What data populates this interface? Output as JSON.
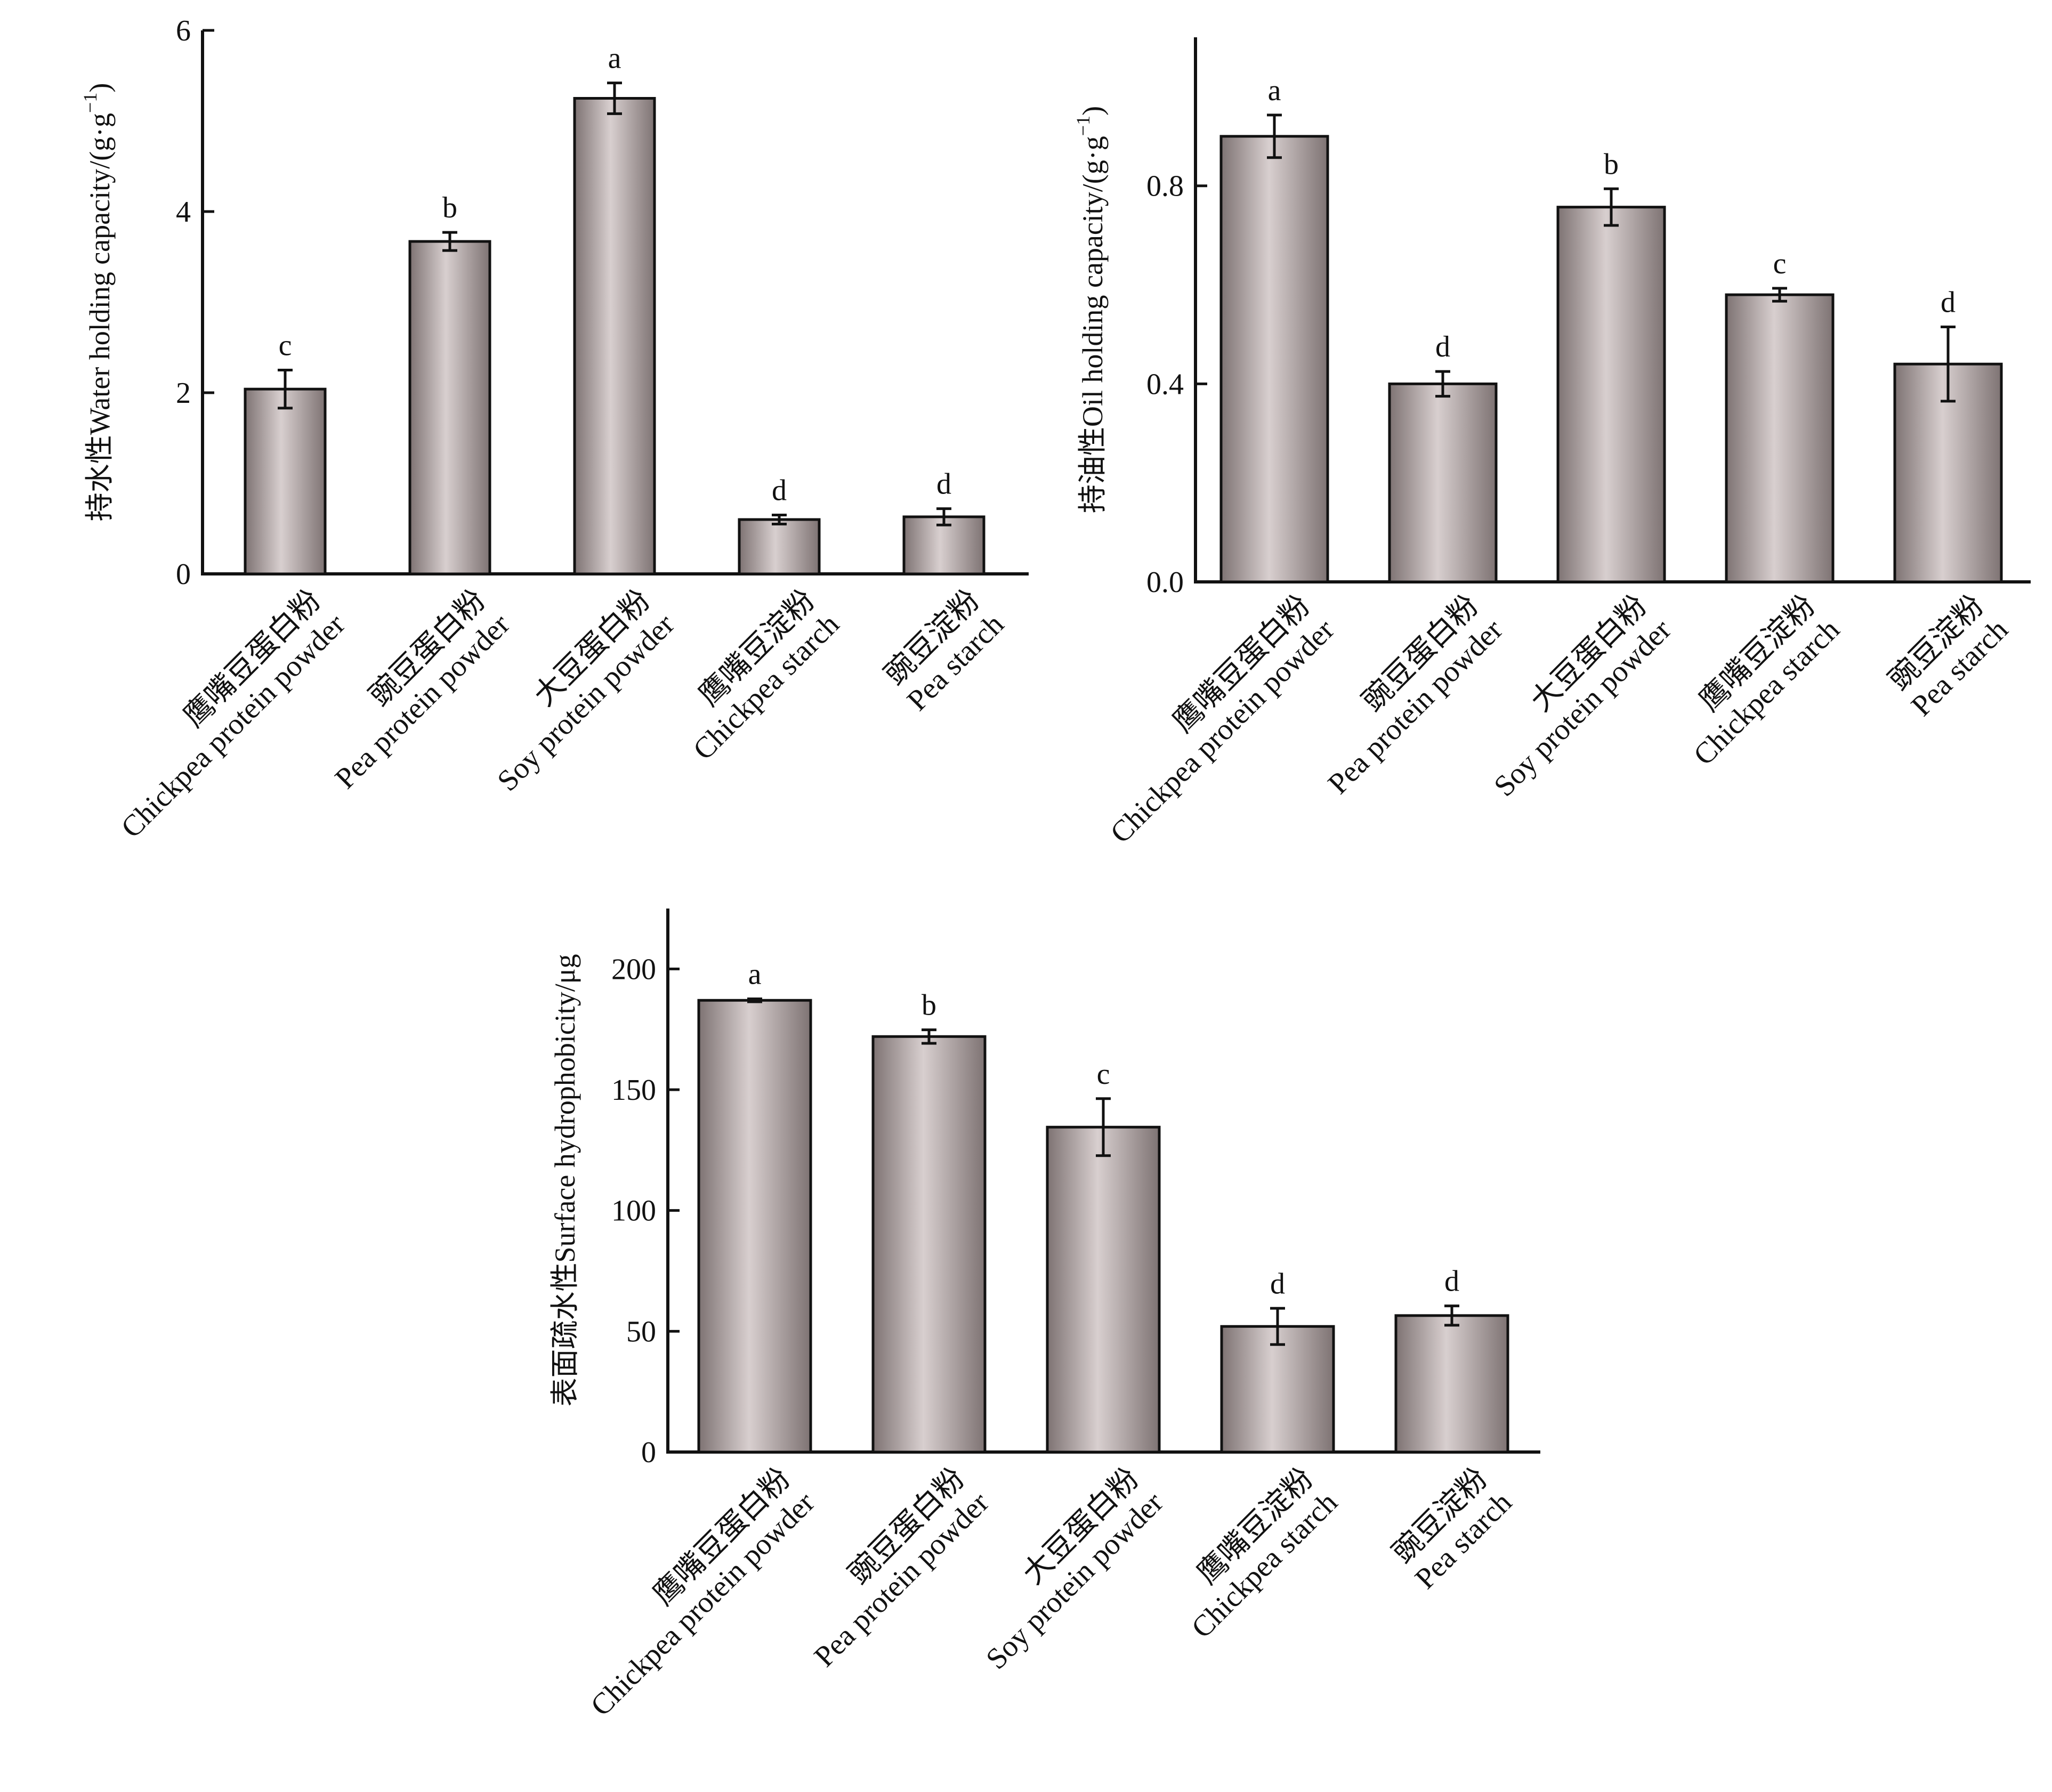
{
  "figure": {
    "bar_color_edge": "#7e7373",
    "bar_color_center": "#d8cfcf",
    "bar_outline": "#111111",
    "axis_color": "#111111"
  },
  "chart_data": [
    {
      "id": "water",
      "type": "bar",
      "title": "",
      "xlabel": "",
      "ylabel": "持水性Water holding capacity/(g·g⁻¹)",
      "ylabel_parts": {
        "main": "持水性Water holding capacity/(g·g",
        "sup": "−1",
        "end": ")"
      },
      "ylim": [
        0,
        6
      ],
      "yticks": [
        0,
        2,
        4,
        6
      ],
      "ytick_labels": [
        "0",
        "2",
        "4",
        "6"
      ],
      "categories": [
        [
          "鹰嘴豆蛋白粉",
          "Chickpea protein powder"
        ],
        [
          "豌豆蛋白粉",
          "Pea protein powder"
        ],
        [
          "大豆蛋白粉",
          "Soy protein powder"
        ],
        [
          "鹰嘴豆淀粉",
          "Chickpea starch"
        ],
        [
          "豌豆淀粉",
          "Pea starch"
        ]
      ],
      "values": [
        2.04,
        3.67,
        5.25,
        0.6,
        0.63
      ],
      "errors": [
        0.21,
        0.1,
        0.17,
        0.05,
        0.09
      ],
      "significance": [
        "c",
        "b",
        "a",
        "d",
        "d"
      ],
      "grid": false
    },
    {
      "id": "oil",
      "type": "bar",
      "title": "",
      "xlabel": "",
      "ylabel": "持油性Oil holding capacity/(g·g⁻¹)",
      "ylabel_parts": {
        "main": "持油性Oil holding capacity/(g·g",
        "sup": "−1",
        "end": ")"
      },
      "ylim": [
        0,
        1.1
      ],
      "yticks": [
        0,
        0.4,
        0.8
      ],
      "ytick_labels": [
        "0.0",
        "0.4",
        "0.8"
      ],
      "categories": [
        [
          "鹰嘴豆蛋白粉",
          "Chickpea protein powder"
        ],
        [
          "豌豆蛋白粉",
          "Pea protein powder"
        ],
        [
          "大豆蛋白粉",
          "Soy protein powder"
        ],
        [
          "鹰嘴豆淀粉",
          "Chickpea starch"
        ],
        [
          "豌豆淀粉",
          "Pea starch"
        ]
      ],
      "values": [
        0.9,
        0.4,
        0.757,
        0.58,
        0.44
      ],
      "errors": [
        0.043,
        0.025,
        0.037,
        0.013,
        0.075
      ],
      "significance": [
        "a",
        "d",
        "b",
        "c",
        "d"
      ],
      "grid": false
    },
    {
      "id": "hydro",
      "type": "bar",
      "title": "",
      "xlabel": "",
      "ylabel": "表面疏水性Surface hydrophobicity/μg",
      "ylabel_parts": {
        "main": "表面疏水性Surface hydrophobicity/μg",
        "sup": "",
        "end": ""
      },
      "ylim": [
        0,
        225
      ],
      "yticks": [
        0,
        50,
        100,
        150,
        200
      ],
      "ytick_labels": [
        "0",
        "50",
        "100",
        "150",
        "200"
      ],
      "categories": [
        [
          "鹰嘴豆蛋白粉",
          "Chickpea protein powder"
        ],
        [
          "豌豆蛋白粉",
          "Pea protein powder"
        ],
        [
          "大豆蛋白粉",
          "Soy protein powder"
        ],
        [
          "鹰嘴豆淀粉",
          "Chickpea starch"
        ],
        [
          "豌豆淀粉",
          "Pea starch"
        ]
      ],
      "values": [
        187,
        172,
        134.5,
        52,
        56.5
      ],
      "errors": [
        0.6,
        2.8,
        11.8,
        7.5,
        4.0
      ],
      "significance": [
        "a",
        "b",
        "c",
        "d",
        "d"
      ],
      "grid": false
    }
  ]
}
